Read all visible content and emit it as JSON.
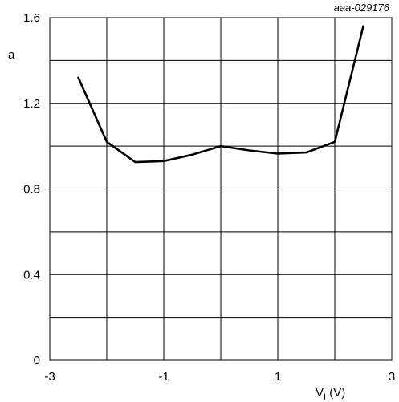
{
  "chart_data": {
    "type": "line",
    "reference": "aaa-029176",
    "ylabel": "a",
    "xlabel": {
      "main": "V",
      "subscript": "I",
      "unit": " (V)"
    },
    "xlim": [
      -3,
      3
    ],
    "ylim": [
      0,
      1.6
    ],
    "x_tick_labels": [
      "-3",
      "-1",
      "1",
      "3"
    ],
    "x_tick_values": [
      -3,
      -1,
      1,
      3
    ],
    "y_tick_labels": [
      "0",
      "0.4",
      "0.8",
      "1.2",
      "1.6"
    ],
    "y_tick_values": [
      0,
      0.4,
      0.8,
      1.2,
      1.6
    ],
    "x_grid_step": 1,
    "y_grid_step": 0.2,
    "grid": true,
    "series": [
      {
        "x": [
          -2.5,
          -2,
          -1.5,
          -1,
          -0.5,
          0,
          0.5,
          1,
          1.5,
          2,
          2.5
        ],
        "y": [
          1.32,
          1.02,
          0.925,
          0.93,
          0.96,
          1.0,
          0.98,
          0.965,
          0.97,
          1.02,
          1.56
        ],
        "color": "#000000"
      }
    ]
  }
}
